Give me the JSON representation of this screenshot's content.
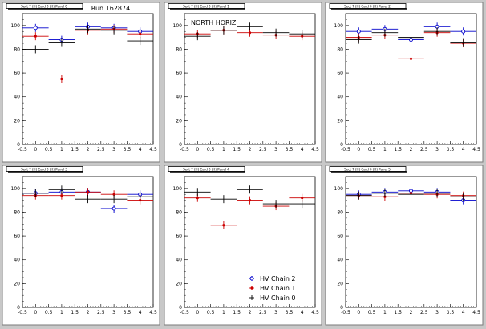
{
  "run_label": "Run 162874",
  "colors": {
    "HV Chain 2": "#0000cc",
    "HV Chain 1": "#cc0000",
    "HV Chain 0": "#000000"
  },
  "chart_data": [
    {
      "type": "scatter",
      "title": "Sect 7 (H) Card 0 (H) Panel 0",
      "annotation": "",
      "xlim": [
        -0.5,
        4.5
      ],
      "ylim": [
        0,
        110
      ],
      "x_ticks": [
        "-0.5",
        "0",
        "0.5",
        "1",
        "1.5",
        "2",
        "2.5",
        "3",
        "3.5",
        "4",
        "4.5"
      ],
      "y_ticks": [
        "0",
        "20",
        "40",
        "60",
        "80",
        "100"
      ],
      "series": [
        {
          "name": "HV Chain 2",
          "x": [
            0,
            1,
            2,
            3,
            4
          ],
          "y": [
            98,
            88,
            99,
            98,
            95
          ]
        },
        {
          "name": "HV Chain 1",
          "x": [
            0,
            1,
            2,
            3,
            4
          ],
          "y": [
            91,
            55,
            96,
            97,
            93
          ]
        },
        {
          "name": "HV Chain 0",
          "x": [
            0,
            1,
            2,
            3,
            4
          ],
          "y": [
            80,
            86,
            97,
            96,
            87
          ]
        }
      ]
    },
    {
      "type": "scatter",
      "title": "Sect 7 (H) Card 0 (H) Panel 1",
      "annotation": "NORTH HORIZ",
      "xlim": [
        -0.5,
        4.5
      ],
      "ylim": [
        0,
        110
      ],
      "x_ticks": [
        "-0.5",
        "0",
        "0.5",
        "1",
        "1.5",
        "2",
        "2.5",
        "3",
        "3.5",
        "4",
        "4.5"
      ],
      "y_ticks": [
        "0",
        "20",
        "40",
        "60",
        "80",
        "100"
      ],
      "series": [
        {
          "name": "HV Chain 1",
          "x": [
            0,
            1,
            2,
            3,
            4
          ],
          "y": [
            93,
            96,
            94,
            92,
            91
          ]
        },
        {
          "name": "HV Chain 0",
          "x": [
            0,
            1,
            2,
            3,
            4
          ],
          "y": [
            91,
            96,
            99,
            94,
            93
          ]
        }
      ]
    },
    {
      "type": "scatter",
      "title": "Sect 7 (H) Card 0 (H) Panel 2",
      "annotation": "",
      "xlim": [
        -0.5,
        4.5
      ],
      "ylim": [
        0,
        110
      ],
      "x_ticks": [
        "-0.5",
        "0",
        "0.5",
        "1",
        "1.5",
        "2",
        "2.5",
        "3",
        "3.5",
        "4",
        "4.5"
      ],
      "y_ticks": [
        "0",
        "20",
        "40",
        "60",
        "80",
        "100"
      ],
      "series": [
        {
          "name": "HV Chain 2",
          "x": [
            0,
            1,
            2,
            3,
            4
          ],
          "y": [
            95,
            97,
            88,
            99,
            95
          ]
        },
        {
          "name": "HV Chain 1",
          "x": [
            0,
            1,
            2,
            3,
            4
          ],
          "y": [
            90,
            92,
            72,
            94,
            85
          ]
        },
        {
          "name": "HV Chain 0",
          "x": [
            0,
            1,
            2,
            3,
            4
          ],
          "y": [
            88,
            94,
            90,
            95,
            86
          ]
        }
      ]
    },
    {
      "type": "scatter",
      "title": "Sect 7 (H) Card 0 (H) Panel 3",
      "annotation": "",
      "xlim": [
        -0.5,
        4.5
      ],
      "ylim": [
        0,
        110
      ],
      "x_ticks": [
        "-0.5",
        "0",
        "0.5",
        "1",
        "1.5",
        "2",
        "2.5",
        "3",
        "3.5",
        "4",
        "4.5"
      ],
      "y_ticks": [
        "0",
        "20",
        "40",
        "60",
        "80",
        "100"
      ],
      "series": [
        {
          "name": "HV Chain 2",
          "x": [
            0,
            1,
            2,
            3,
            4
          ],
          "y": [
            96,
            97,
            97,
            83,
            95
          ]
        },
        {
          "name": "HV Chain 1",
          "x": [
            0,
            1,
            2,
            3,
            4
          ],
          "y": [
            94,
            94,
            97,
            95,
            90
          ]
        },
        {
          "name": "HV Chain 0",
          "x": [
            0,
            1,
            2,
            3,
            4
          ],
          "y": [
            96,
            99,
            91,
            91,
            93
          ]
        }
      ]
    },
    {
      "type": "scatter",
      "title": "Sect 7 (H) Card 0 (H) Panel 4",
      "annotation": "",
      "xlim": [
        -0.5,
        4.5
      ],
      "ylim": [
        0,
        110
      ],
      "x_ticks": [
        "-0.5",
        "0",
        "0.5",
        "1",
        "1.5",
        "2",
        "2.5",
        "3",
        "3.5",
        "4",
        "4.5"
      ],
      "y_ticks": [
        "0",
        "20",
        "40",
        "60",
        "80",
        "100"
      ],
      "legend": [
        "HV Chain 2",
        "HV Chain 1",
        "HV Chain 0"
      ],
      "series": [
        {
          "name": "HV Chain 1",
          "x": [
            0,
            1,
            2,
            3,
            4
          ],
          "y": [
            92,
            69,
            90,
            85,
            92
          ]
        },
        {
          "name": "HV Chain 0",
          "x": [
            0,
            1,
            2,
            3,
            4
          ],
          "y": [
            97,
            91,
            99,
            87,
            87
          ]
        }
      ]
    },
    {
      "type": "scatter",
      "title": "Sect 7 (H) Card 0 (H) Panel 5",
      "annotation": "",
      "xlim": [
        -0.5,
        4.5
      ],
      "ylim": [
        0,
        110
      ],
      "x_ticks": [
        "-0.5",
        "0",
        "0.5",
        "1",
        "1.5",
        "2",
        "2.5",
        "3",
        "3.5",
        "4",
        "4.5"
      ],
      "y_ticks": [
        "0",
        "20",
        "40",
        "60",
        "80",
        "100"
      ],
      "series": [
        {
          "name": "HV Chain 2",
          "x": [
            0,
            1,
            2,
            3,
            4
          ],
          "y": [
            95,
            97,
            98,
            97,
            90
          ]
        },
        {
          "name": "HV Chain 1",
          "x": [
            0,
            1,
            2,
            3,
            4
          ],
          "y": [
            94,
            93,
            96,
            95,
            94
          ]
        },
        {
          "name": "HV Chain 0",
          "x": [
            0,
            1,
            2,
            3,
            4
          ],
          "y": [
            94,
            96,
            95,
            96,
            93
          ]
        }
      ]
    }
  ]
}
